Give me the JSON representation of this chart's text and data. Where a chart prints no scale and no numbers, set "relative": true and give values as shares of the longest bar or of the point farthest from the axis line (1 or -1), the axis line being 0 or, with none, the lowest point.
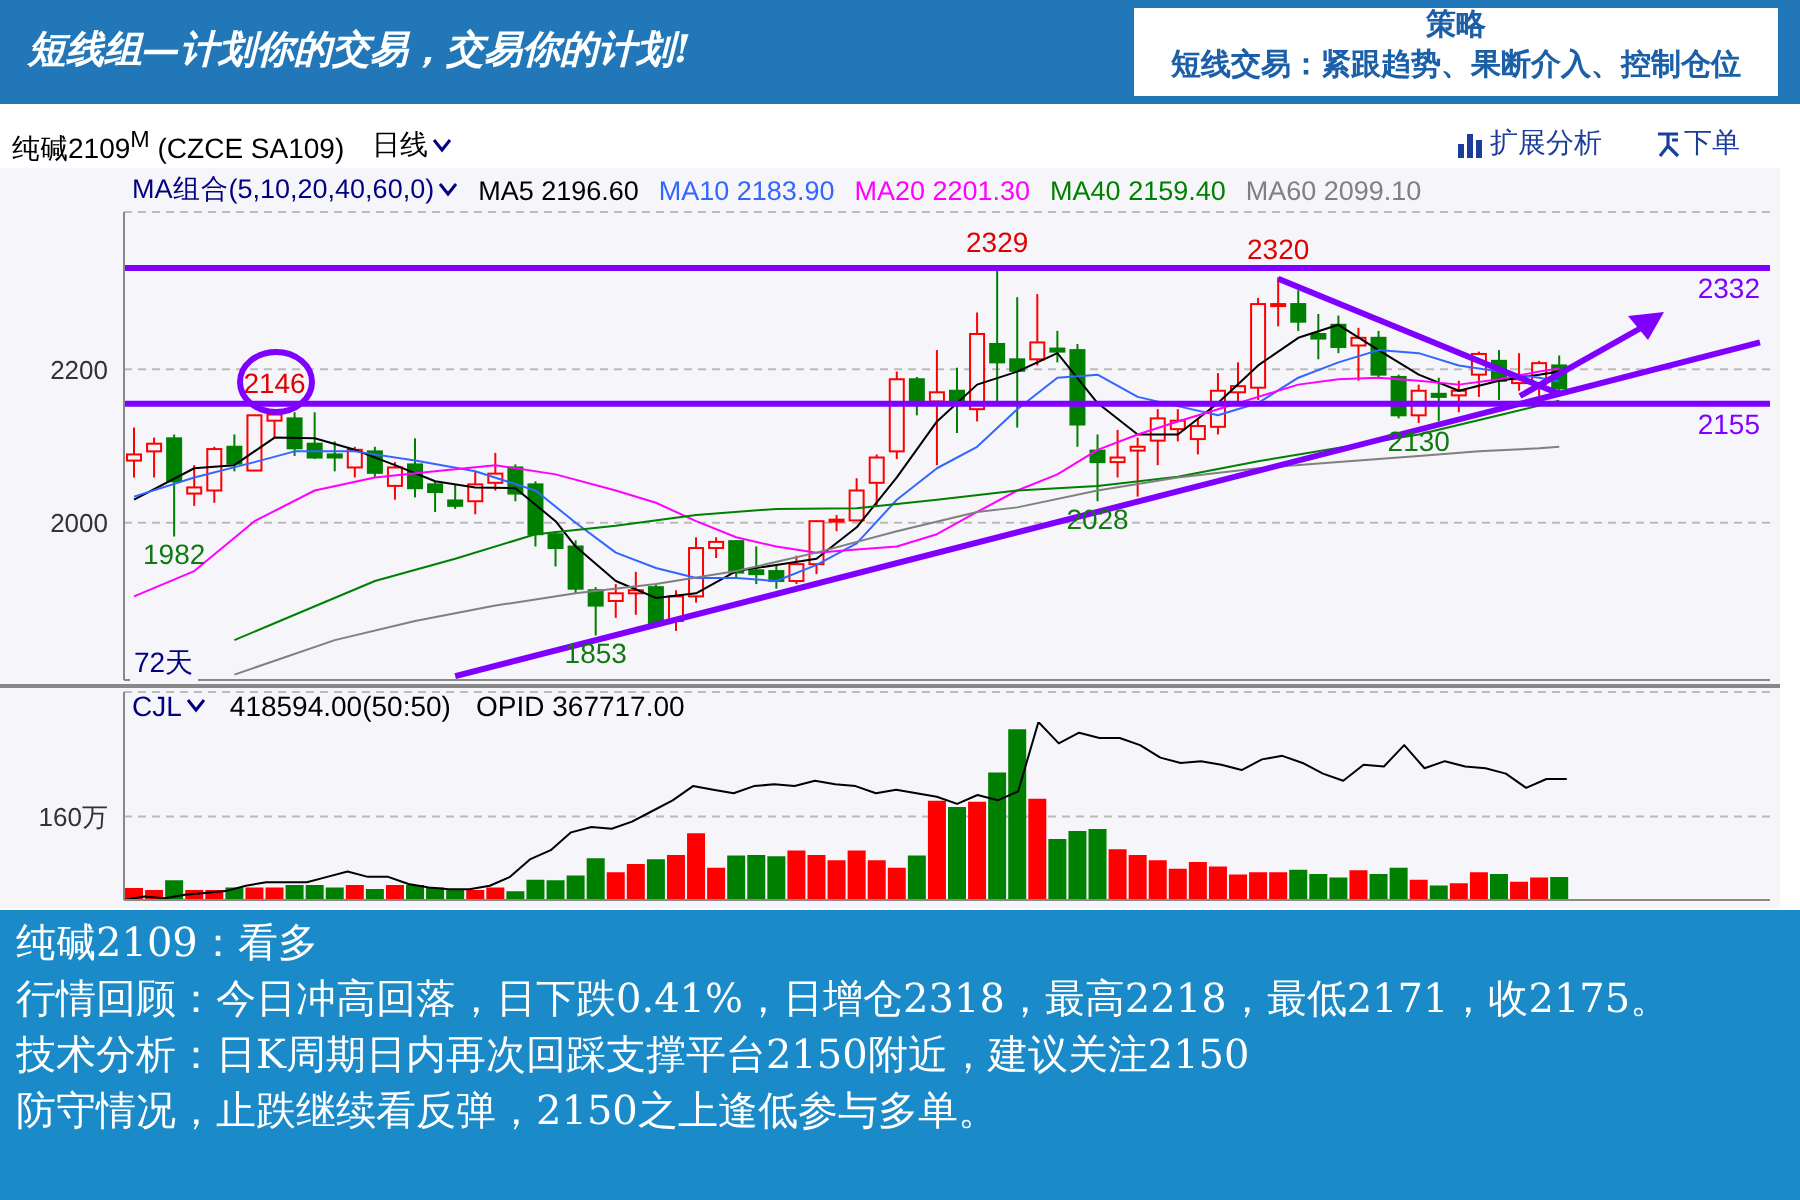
{
  "chart_data": [
    {
      "type": "other",
      "annotations": [
        "短线组—计划你的交易，交易你的计划!",
        "策略",
        "短线交易：紧跟趋势、果断介入、控制仓位"
      ]
    },
    {
      "type": "candlestick",
      "title": "纯碱2109$^{M}$ (CZCE SA109)",
      "legend_title": "MA组合(5,10,20,40,60,0)",
      "legend": "top",
      "grid": "y",
      "tick_labels": "y",
      "categories": [
        null,
        null,
        null,
        null,
        null,
        null,
        null,
        null,
        null,
        null,
        null,
        null,
        null,
        null,
        null,
        null,
        null,
        null,
        null,
        null,
        null,
        null,
        null,
        null,
        null,
        null,
        null,
        null,
        null,
        null,
        null,
        null,
        null,
        null,
        null,
        null,
        null,
        null,
        null,
        null,
        null,
        null,
        null,
        null,
        null,
        null,
        null,
        null,
        null,
        null,
        null,
        null,
        null,
        null,
        null,
        null,
        null,
        null,
        null,
        null,
        null,
        null,
        null,
        null,
        null,
        null,
        null,
        null,
        null,
        null,
        null,
        null,
        null,
        null,
        null,
        null,
        null,
        null,
        null,
        null,
        null,
        null
      ],
      "ohlc": [
        [
          2081,
          2124,
          2059,
          2089
        ],
        [
          2093,
          2111,
          2059,
          2103
        ],
        [
          2110,
          2115,
          1982,
          2054
        ],
        [
          2038,
          2075,
          2022,
          2046
        ],
        [
          2042,
          2099,
          2026,
          2096
        ],
        [
          2099,
          2115,
          2067,
          2077
        ],
        [
          2068,
          2141,
          2068,
          2140
        ],
        [
          2133,
          2146,
          2110,
          2141
        ],
        [
          2136,
          2144,
          2087,
          2097
        ],
        [
          2103,
          2144,
          2083,
          2085
        ],
        [
          2089,
          2106,
          2067,
          2085
        ],
        [
          2072,
          2099,
          2059,
          2095
        ],
        [
          2093,
          2099,
          2059,
          2065
        ],
        [
          2048,
          2079,
          2030,
          2072
        ],
        [
          2076,
          2110,
          2033,
          2045
        ],
        [
          2050,
          2054,
          2014,
          2040
        ],
        [
          2029,
          2050,
          2018,
          2022
        ],
        [
          2028,
          2067,
          2011,
          2050
        ],
        [
          2052,
          2091,
          2042,
          2064
        ],
        [
          2072,
          2076,
          2028,
          2038
        ],
        [
          2050,
          2054,
          1969,
          1985
        ],
        [
          1985,
          1989,
          1943,
          1967
        ],
        [
          1969,
          1977,
          1908,
          1914
        ],
        [
          1912,
          1916,
          1853,
          1892
        ],
        [
          1898,
          1920,
          1876,
          1908
        ],
        [
          1908,
          1936,
          1880,
          1912
        ],
        [
          1916,
          1920,
          1865,
          1867
        ],
        [
          1872,
          1912,
          1859,
          1904
        ],
        [
          1904,
          1981,
          1896,
          1967
        ],
        [
          1967,
          1981,
          1954,
          1975
        ],
        [
          1976,
          1977,
          1928,
          1935
        ],
        [
          1938,
          1969,
          1920,
          1933
        ],
        [
          1937,
          1945,
          1914,
          1924
        ],
        [
          1924,
          1957,
          1920,
          1946
        ],
        [
          1946,
          2003,
          1933,
          2002
        ],
        [
          2002,
          2010,
          1989,
          2004
        ],
        [
          2003,
          2058,
          2002,
          2042
        ],
        [
          2052,
          2089,
          2022,
          2085
        ],
        [
          2093,
          2197,
          2083,
          2187
        ],
        [
          2187,
          2190,
          2140,
          2160
        ],
        [
          2158,
          2225,
          2075,
          2170
        ],
        [
          2172,
          2202,
          2117,
          2156
        ],
        [
          2148,
          2274,
          2132,
          2246
        ],
        [
          2233,
          2329,
          2156,
          2209
        ],
        [
          2213,
          2294,
          2124,
          2198
        ],
        [
          2213,
          2298,
          2205,
          2235
        ],
        [
          2227,
          2250,
          2209,
          2223
        ],
        [
          2225,
          2233,
          2099,
          2128
        ],
        [
          2094,
          2115,
          2028,
          2079
        ],
        [
          2079,
          2121,
          2059,
          2085
        ],
        [
          2094,
          2111,
          2034,
          2099
        ],
        [
          2107,
          2148,
          2075,
          2136
        ],
        [
          2122,
          2148,
          2106,
          2133
        ],
        [
          2109,
          2136,
          2089,
          2126
        ],
        [
          2125,
          2195,
          2115,
          2172
        ],
        [
          2170,
          2209,
          2156,
          2178
        ],
        [
          2176,
          2293,
          2160,
          2285
        ],
        [
          2283,
          2320,
          2256,
          2285
        ],
        [
          2285,
          2303,
          2250,
          2262
        ],
        [
          2246,
          2272,
          2213,
          2240
        ],
        [
          2258,
          2270,
          2221,
          2229
        ],
        [
          2231,
          2254,
          2185,
          2241
        ],
        [
          2241,
          2250,
          2189,
          2193
        ],
        [
          2190,
          2193,
          2136,
          2140
        ],
        [
          2140,
          2180,
          2130,
          2172
        ],
        [
          2168,
          2189,
          2132,
          2164
        ],
        [
          2166,
          2185,
          2144,
          2172
        ],
        [
          2193,
          2223,
          2164,
          2220
        ],
        [
          2211,
          2225,
          2160,
          2185
        ],
        [
          2182,
          2221,
          2172,
          2187
        ],
        [
          2181,
          2211,
          2164,
          2208
        ],
        [
          2205,
          2218,
          2171,
          2175
        ],
        null,
        null,
        null,
        null,
        null,
        null,
        null,
        null,
        null,
        null
      ],
      "series": [
        {
          "type": "line",
          "name": "MA5 2196.60",
          "color": "#000000",
          "values": [
            2030,
            null,
            null,
            2071,
            null,
            2075,
            null,
            2111,
            null,
            2110,
            null,
            2095,
            null,
            2075,
            null,
            2054,
            null,
            2046,
            null,
            2045,
            null,
            2002,
            1969,
            null,
            1924,
            null,
            1902,
            null,
            1908,
            null,
            1937,
            null,
            1945,
            null,
            1953,
            null,
            1994,
            null,
            2059,
            null,
            2132,
            null,
            2180,
            null,
            2197,
            null,
            2221,
            null,
            2156,
            null,
            2115,
            null,
            2115,
            null,
            2156,
            null,
            2205,
            null,
            2241,
            null,
            2258,
            null,
            2225,
            null,
            2193,
            null,
            2172,
            null,
            2185,
            null,
            2193,
            2197,
            null,
            null,
            null,
            null,
            null,
            null,
            null,
            null,
            null,
            null
          ]
        },
        {
          "type": "line",
          "name": "MA10 2183.90",
          "color": "#3366ff",
          "values": [
            2034,
            null,
            null,
            2059,
            null,
            null,
            2079,
            null,
            2093,
            null,
            null,
            2093,
            null,
            null,
            2081,
            null,
            null,
            2067,
            null,
            null,
            2042,
            null,
            2000,
            null,
            1961,
            null,
            1941,
            null,
            1928,
            null,
            1928,
            null,
            1924,
            null,
            1945,
            null,
            1973,
            null,
            2030,
            null,
            2071,
            null,
            2099,
            null,
            2148,
            null,
            2189,
            null,
            2193,
            null,
            2164,
            null,
            2152,
            null,
            2140,
            null,
            2156,
            null,
            2189,
            null,
            2209,
            null,
            2225,
            null,
            2221,
            null,
            2205,
            null,
            2197,
            null,
            2189,
            2184,
            null,
            null,
            null,
            null,
            null,
            null,
            null,
            null,
            null,
            null
          ]
        },
        {
          "type": "line",
          "name": "MA20 2201.30",
          "color": "#ff00ff",
          "values": [
            1904,
            null,
            null,
            1937,
            null,
            null,
            2002,
            null,
            null,
            2042,
            null,
            null,
            2059,
            null,
            null,
            2067,
            null,
            null,
            2075,
            null,
            null,
            2063,
            null,
            null,
            2042,
            null,
            2026,
            null,
            2002,
            null,
            1981,
            null,
            1969,
            null,
            1961,
            null,
            1965,
            null,
            1969,
            null,
            1985,
            null,
            2014,
            null,
            2042,
            null,
            2063,
            null,
            2095,
            null,
            2115,
            null,
            2132,
            null,
            2148,
            null,
            2164,
            null,
            2180,
            null,
            2187,
            null,
            2189,
            null,
            2185,
            null,
            2180,
            null,
            2187,
            null,
            2197,
            2201,
            null,
            null,
            null,
            null,
            null,
            null,
            null,
            null,
            null,
            null
          ]
        },
        {
          "type": "line",
          "name": "MA40 2159.40",
          "color": "#008000",
          "values": [
            null,
            null,
            null,
            null,
            null,
            1847,
            null,
            null,
            1880,
            null,
            null,
            null,
            1924,
            null,
            null,
            null,
            1953,
            null,
            null,
            null,
            1985,
            null,
            null,
            null,
            1996,
            null,
            null,
            null,
            2010,
            null,
            null,
            null,
            2018,
            null,
            null,
            null,
            2019,
            null,
            null,
            null,
            2030,
            null,
            null,
            null,
            2042,
            null,
            null,
            null,
            2048,
            null,
            null,
            null,
            2060,
            null,
            null,
            null,
            2080,
            null,
            null,
            null,
            null,
            null,
            null,
            null,
            2115,
            null,
            null,
            null,
            2140,
            null,
            null,
            2159,
            null,
            null,
            null,
            null,
            null,
            null,
            null,
            null,
            null,
            null
          ]
        },
        {
          "type": "line",
          "name": "MA60 2099.10",
          "color": "#808080",
          "values": [
            null,
            null,
            null,
            null,
            null,
            1802,
            null,
            null,
            null,
            null,
            1847,
            null,
            null,
            null,
            1872,
            null,
            null,
            null,
            1892,
            null,
            null,
            null,
            1908,
            null,
            null,
            null,
            1920,
            null,
            null,
            null,
            1937,
            null,
            null,
            null,
            1961,
            null,
            null,
            null,
            1989,
            null,
            null,
            null,
            2014,
            null,
            2020,
            null,
            null,
            null,
            2042,
            null,
            null,
            null,
            2059,
            null,
            null,
            null,
            2071,
            null,
            null,
            null,
            2079,
            null,
            null,
            null,
            2087,
            null,
            null,
            2093,
            null,
            null,
            2097,
            2099,
            null,
            null,
            null,
            null,
            null,
            null,
            null,
            null,
            null,
            null
          ]
        },
        {
          "type": "line",
          "color": "#8000ff",
          "values": [
            null,
            null,
            null,
            null,
            null,
            null,
            null,
            null,
            null,
            null,
            null,
            null,
            null,
            null,
            null,
            null,
            1800,
            null,
            null,
            null,
            null,
            null,
            null,
            null,
            null,
            null,
            null,
            null,
            null,
            null,
            null,
            null,
            null,
            null,
            null,
            null,
            null,
            null,
            null,
            null,
            null,
            null,
            null,
            null,
            null,
            null,
            null,
            null,
            null,
            null,
            null,
            null,
            null,
            null,
            null,
            null,
            null,
            null,
            null,
            null,
            null,
            null,
            null,
            null,
            null,
            null,
            null,
            null,
            null,
            null,
            null,
            null,
            null,
            null,
            null,
            null,
            null,
            null,
            null,
            null,
            null,
            2235
          ]
        },
        {
          "type": "line",
          "color": "#8000ff",
          "values": [
            null,
            null,
            null,
            null,
            null,
            null,
            null,
            null,
            null,
            null,
            null,
            null,
            null,
            null,
            null,
            null,
            null,
            null,
            null,
            null,
            null,
            null,
            null,
            null,
            null,
            null,
            null,
            null,
            null,
            null,
            null,
            null,
            null,
            null,
            null,
            null,
            null,
            null,
            null,
            null,
            null,
            null,
            null,
            null,
            null,
            null,
            null,
            null,
            null,
            null,
            null,
            null,
            null,
            null,
            null,
            null,
            null,
            2318,
            null,
            null,
            null,
            null,
            null,
            null,
            null,
            null,
            null,
            null,
            null,
            null,
            null,
            2168,
            null,
            null,
            null,
            null,
            null,
            null,
            null,
            null,
            null,
            null
          ]
        }
      ],
      "ylim": [
        1795,
        2405
      ],
      "yticks": [
        2000,
        2200
      ],
      "ref_lines": [
        {
          "axis": "y",
          "value": 2332,
          "label": "2332",
          "color": "#8000ff"
        },
        {
          "axis": "y",
          "value": 2155,
          "label": "2155",
          "color": "#8000ff"
        }
      ],
      "annotations": [
        "72天",
        "日线",
        "扩展分析",
        "下单",
        {
          "text": "2146",
          "y": 2146
        },
        {
          "text": "1982",
          "y": 1982
        },
        {
          "text": "1853",
          "y": 1853
        },
        {
          "text": "2329",
          "y": 2329
        },
        {
          "text": "2028",
          "y": 2028
        },
        {
          "text": "2320",
          "y": 2320
        },
        {
          "text": "2130",
          "y": 2130
        }
      ]
    },
    {
      "type": "bar",
      "title": "CJL",
      "stacked": true,
      "grid": "y",
      "tick_labels": "y",
      "categories": [
        null,
        null,
        null,
        null,
        null,
        null,
        null,
        null,
        null,
        null,
        null,
        null,
        null,
        null,
        null,
        null,
        null,
        null,
        null,
        null,
        null,
        null,
        null,
        null,
        null,
        null,
        null,
        null,
        null,
        null,
        null,
        null,
        null,
        null,
        null,
        null,
        null,
        null,
        null,
        null,
        null,
        null,
        null,
        null,
        null,
        null,
        null,
        null,
        null,
        null,
        null,
        null,
        null,
        null,
        null,
        null,
        null,
        null,
        null,
        null,
        null,
        null,
        null,
        null,
        null,
        null,
        null,
        null,
        null,
        null,
        null,
        null,
        null,
        null,
        null,
        null,
        null,
        null,
        null,
        null,
        null,
        null
      ],
      "series": [
        {
          "type": "bar",
          "color": "#ff0000",
          "values": [
            21,
            17,
            null,
            17,
            17,
            null,
            22,
            22,
            null,
            null,
            null,
            27,
            null,
            27,
            null,
            null,
            null,
            17,
            22,
            null,
            null,
            null,
            null,
            null,
            51,
            67,
            null,
            84,
            126,
            60,
            null,
            null,
            null,
            93,
            84,
            74,
            93,
            74,
            60,
            null,
            188,
            null,
            186,
            null,
            null,
            192,
            null,
            null,
            null,
            95,
            84,
            74,
            58,
            71,
            62,
            47,
            51,
            51,
            null,
            null,
            null,
            55,
            null,
            null,
            37,
            null,
            30,
            51,
            null,
            33,
            41,
            null,
            null,
            null,
            null,
            null,
            null,
            null,
            null,
            null,
            null,
            null
          ]
        },
        {
          "type": "bar",
          "color": "#008000",
          "values": [
            null,
            null,
            36,
            null,
            null,
            22,
            null,
            null,
            27,
            27,
            22,
            null,
            19,
            null,
            27,
            22,
            19,
            null,
            null,
            15,
            37,
            36,
            45,
            78,
            null,
            null,
            76,
            null,
            null,
            null,
            83,
            84,
            82,
            null,
            null,
            null,
            null,
            null,
            null,
            83,
            null,
            176,
            null,
            242,
            325,
            null,
            115,
            130,
            134,
            null,
            null,
            null,
            null,
            null,
            null,
            null,
            null,
            null,
            56,
            48,
            41,
            null,
            48,
            60,
            null,
            26,
            null,
            null,
            48,
            null,
            null,
            42,
            null,
            null,
            null,
            null,
            null,
            null,
            null,
            null,
            null,
            null
          ]
        }
      ],
      "ylim": [
        0,
        398
      ],
      "yticks": [
        {
          "value": 160,
          "label": "160万"
        }
      ],
      "annotations": [
        "418594.00(50:50)"
      ]
    },
    {
      "type": "line",
      "relative": true,
      "title": "OPID 367717.00",
      "tick_labels": false,
      "categories": [
        null,
        null,
        null,
        null,
        null,
        null,
        null,
        null,
        null,
        null,
        null,
        null,
        null,
        null,
        null,
        null,
        null,
        null,
        null,
        null,
        null,
        null,
        null,
        null,
        null,
        null,
        null,
        null,
        null,
        null,
        null,
        null,
        null,
        null,
        null,
        null,
        null,
        null,
        null,
        null,
        null,
        null,
        null,
        null,
        null,
        null,
        null,
        null,
        null,
        null,
        null,
        null,
        null,
        null,
        null,
        null,
        null,
        null,
        null,
        null,
        null,
        null,
        null,
        null,
        null,
        null,
        null,
        null,
        null,
        null,
        null,
        null,
        null,
        null,
        null,
        null,
        null,
        null,
        null,
        null,
        null,
        null
      ],
      "series": [
        {
          "color": "#000000",
          "values": [
            0,
            0.02,
            0.01,
            0.03,
            0.04,
            0.05,
            0.08,
            0.1,
            0.1,
            0.1,
            0.13,
            0.16,
            0.13,
            0.13,
            0.09,
            0.07,
            0.06,
            0.06,
            0.08,
            0.13,
            0.23,
            0.28,
            0.38,
            0.41,
            0.4,
            0.44,
            0.5,
            0.56,
            0.64,
            0.62,
            0.6,
            0.64,
            0.65,
            0.64,
            0.67,
            0.65,
            0.64,
            0.6,
            0.62,
            0.6,
            0.58,
            0.54,
            0.59,
            0.56,
            0.61,
            1,
            0.88,
            0.94,
            0.91,
            0.91,
            0.87,
            0.8,
            0.77,
            0.78,
            0.76,
            0.73,
            0.79,
            0.81,
            0.77,
            0.71,
            0.67,
            0.76,
            0.75,
            0.87,
            0.74,
            0.78,
            0.75,
            0.74,
            0.71,
            0.63,
            0.68,
            0.68,
            null,
            null,
            null,
            null,
            null,
            null,
            null,
            null,
            null,
            null
          ]
        }
      ]
    },
    {
      "type": "other",
      "annotations": [
        "纯碱2109：看多",
        "行情回顾：今日冲高回落，日下跌0.41%，日增仓2318，最高2218，最低2171，收2175。",
        "技术分析：日K周期日内再次回踩支撑平台2150附近，建议关注2150",
        "防守情况，止跌继续看反弹，2150之上逢低参与多单。"
      ]
    }
  ]
}
